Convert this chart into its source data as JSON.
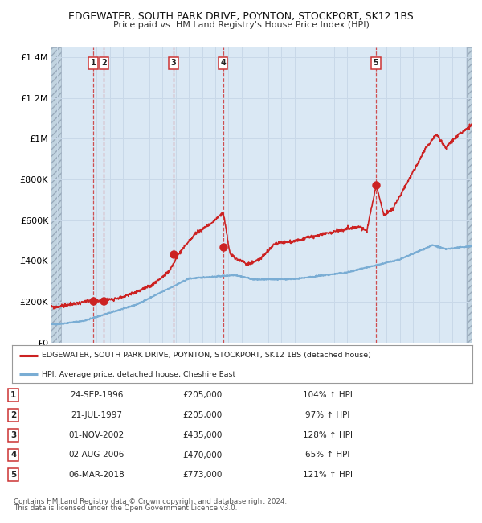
{
  "title": "EDGEWATER, SOUTH PARK DRIVE, POYNTON, STOCKPORT, SK12 1BS",
  "subtitle": "Price paid vs. HM Land Registry's House Price Index (HPI)",
  "legend_line1": "EDGEWATER, SOUTH PARK DRIVE, POYNTON, STOCKPORT, SK12 1BS (detached house)",
  "legend_line2": "HPI: Average price, detached house, Cheshire East",
  "footer1": "Contains HM Land Registry data © Crown copyright and database right 2024.",
  "footer2": "This data is licensed under the Open Government Licence v3.0.",
  "sales": [
    {
      "num": 1,
      "date_str": "24-SEP-1996",
      "date_x": 1996.73,
      "price": 205000,
      "pct": "104%",
      "dir": "↑"
    },
    {
      "num": 2,
      "date_str": "21-JUL-1997",
      "date_x": 1997.55,
      "price": 205000,
      "pct": "97%",
      "dir": "↑"
    },
    {
      "num": 3,
      "date_str": "01-NOV-2002",
      "date_x": 2002.83,
      "price": 435000,
      "pct": "128%",
      "dir": "↑"
    },
    {
      "num": 4,
      "date_str": "02-AUG-2006",
      "date_x": 2006.58,
      "price": 470000,
      "pct": "65%",
      "dir": "↑"
    },
    {
      "num": 5,
      "date_str": "06-MAR-2018",
      "date_x": 2018.17,
      "price": 773000,
      "pct": "121%",
      "dir": "↑"
    }
  ],
  "xlim": [
    1993.5,
    2025.5
  ],
  "ylim": [
    0,
    1450000
  ],
  "yticks": [
    0,
    200000,
    400000,
    600000,
    800000,
    1000000,
    1200000,
    1400000
  ],
  "ytick_labels": [
    "£0",
    "£200K",
    "£400K",
    "£600K",
    "£800K",
    "£1M",
    "£1.2M",
    "£1.4M"
  ],
  "xticks": [
    1994,
    1995,
    1996,
    1997,
    1998,
    1999,
    2000,
    2001,
    2002,
    2003,
    2004,
    2005,
    2006,
    2007,
    2008,
    2009,
    2010,
    2011,
    2012,
    2013,
    2014,
    2015,
    2016,
    2017,
    2018,
    2019,
    2020,
    2021,
    2022,
    2023,
    2024,
    2025
  ],
  "hpi_color": "#7aadd4",
  "price_color": "#cc2222",
  "sale_dot_color": "#cc2222",
  "vline_color": "#cc3333",
  "grid_color": "#c8d8e8",
  "bg_color": "#dae8f4",
  "hatch_color": "#b8ccd8",
  "fig_bg": "#ffffff"
}
